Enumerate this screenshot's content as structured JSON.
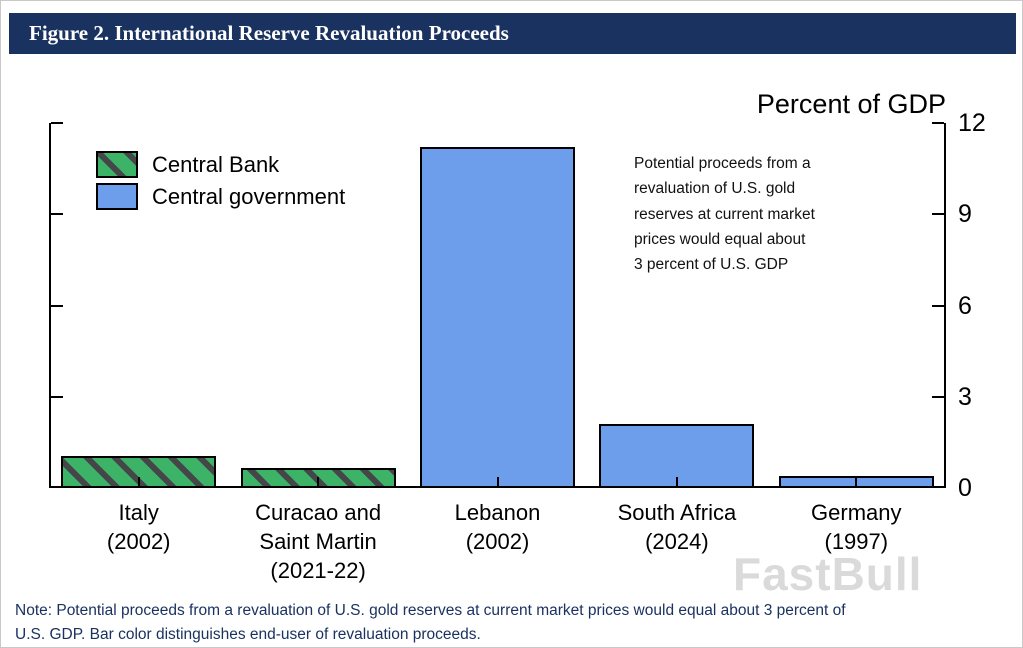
{
  "header": {
    "title": "Figure 2. International Reserve Revaluation Proceeds"
  },
  "chart_data": {
    "type": "bar",
    "title": "Percent of GDP",
    "categories": [
      "Italy\n(2002)",
      "Curacao and\nSaint Martin\n(2021-22)",
      "Lebanon\n(2002)",
      "South Africa\n(2024)",
      "Germany\n(1997)"
    ],
    "series": [
      {
        "name": "Central Bank",
        "style": "hatched-green",
        "values": [
          1.05,
          0.65,
          null,
          null,
          null
        ]
      },
      {
        "name": "Central government",
        "style": "solid-blue",
        "values": [
          null,
          null,
          11.2,
          2.1,
          0.4
        ]
      }
    ],
    "xlabel": "",
    "ylabel": "Percent of GDP",
    "ylim": [
      0,
      12
    ],
    "yticks": [
      0,
      3,
      6,
      9,
      12
    ],
    "grid": false,
    "legend_position": "top-left",
    "annotation": "Potential proceeds from a\nrevaluation of U.S. gold\nreserves at current market\nprices would equal about\n3 percent of U.S. GDP"
  },
  "note": "Note: Potential proceeds from a revaluation of U.S. gold reserves at current market prices would equal about 3 percent of\nU.S. GDP. Bar color distinguishes end-user of revaluation proceeds.",
  "watermark": "FastBull",
  "colors": {
    "header_bg": "#1a3260",
    "header_text": "#ffffff",
    "bar_blue": "#6d9eeb",
    "bar_green": "#3db368",
    "hatch_stripe": "#44464a",
    "axis": "#000000",
    "note_text": "#1a3260",
    "watermark": "#bdbdbd"
  }
}
